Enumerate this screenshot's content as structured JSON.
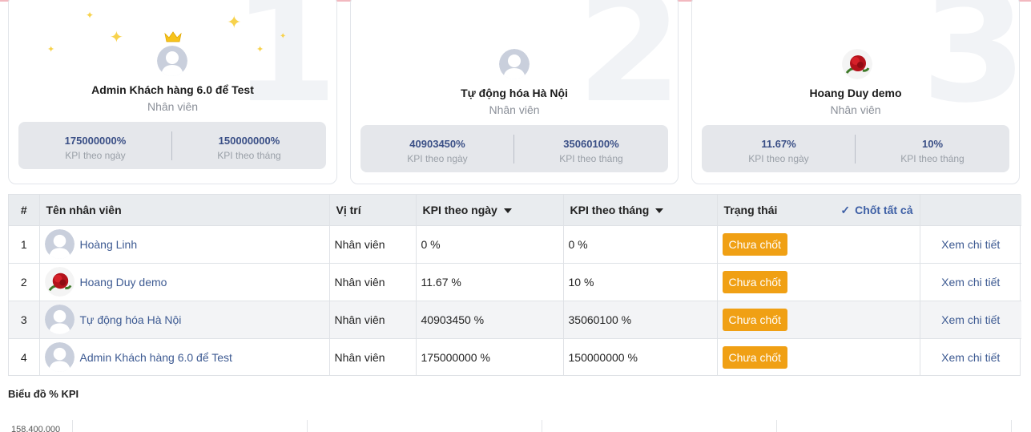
{
  "top_cards": [
    {
      "rank": "1",
      "name": "Admin Khách hàng 6.0 để Test",
      "role": "Nhân viên",
      "kpi_day": "175000000%",
      "kpi_day_label": "KPI theo ngày",
      "kpi_month": "150000000%",
      "kpi_month_label": "KPI theo tháng",
      "avatar": "default-avatar"
    },
    {
      "rank": "2",
      "name": "Tự động hóa Hà Nội",
      "role": "Nhân viên",
      "kpi_day": "40903450%",
      "kpi_day_label": "KPI theo ngày",
      "kpi_month": "35060100%",
      "kpi_month_label": "KPI theo tháng",
      "avatar": "default-avatar"
    },
    {
      "rank": "3",
      "name": "Hoang Duy demo",
      "role": "Nhân viên",
      "kpi_day": "11.67%",
      "kpi_day_label": "KPI theo ngày",
      "kpi_month": "10%",
      "kpi_month_label": "KPI theo tháng",
      "avatar": "rose-photo"
    }
  ],
  "table": {
    "headers": {
      "index": "#",
      "name": "Tên nhân viên",
      "position": "Vị trí",
      "kpi_day": "KPI theo ngày",
      "kpi_month": "KPI theo tháng",
      "status": "Trạng thái",
      "chot_all": "Chốt tất cả"
    },
    "rows": [
      {
        "index": "1",
        "name": "Hoàng Linh",
        "position": "Nhân viên",
        "kpi_day": "0 %",
        "kpi_month": "0 %",
        "status": "Chưa chốt",
        "detail": "Xem chi tiết"
      },
      {
        "index": "2",
        "name": "Hoang Duy demo",
        "position": "Nhân viên",
        "kpi_day": "11.67 %",
        "kpi_month": "10 %",
        "status": "Chưa chốt",
        "detail": "Xem chi tiết"
      },
      {
        "index": "3",
        "name": "Tự động hóa Hà Nội",
        "position": "Nhân viên",
        "kpi_day": "40903450 %",
        "kpi_month": "35060100 %",
        "status": "Chưa chốt",
        "detail": "Xem chi tiết"
      },
      {
        "index": "4",
        "name": "Admin Khách hàng 6.0 để Test",
        "position": "Nhân viên",
        "kpi_day": "175000000 %",
        "kpi_month": "150000000 %",
        "status": "Chưa chốt",
        "detail": "Xem chi tiết"
      }
    ]
  },
  "chart": {
    "title": "Biểu đồ % KPI",
    "y_top_tick": "158,400,000"
  },
  "colors": {
    "accent": "#3d5a92",
    "status_button": "#f0a014",
    "kpi_value": "#3a4f86",
    "crown": "#f7c31c"
  },
  "icons": {
    "crown": "crown-icon",
    "check": "check-icon",
    "sort": "caret-down-icon",
    "sparkle": "sparkle-icon"
  }
}
